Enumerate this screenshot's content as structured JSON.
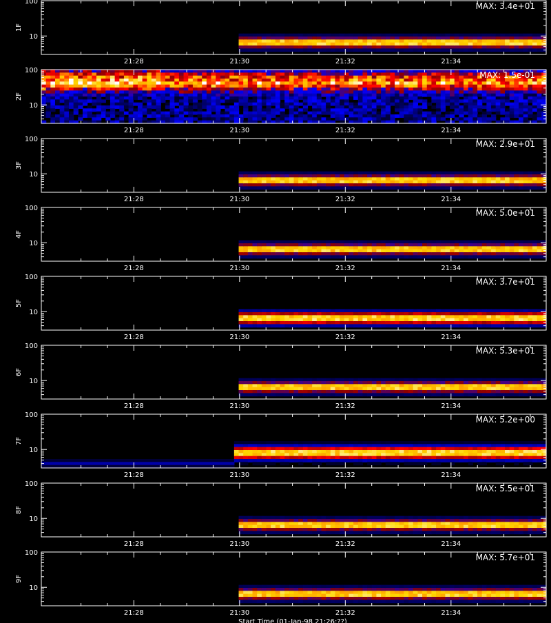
{
  "chart_data": {
    "type": "heatmap",
    "title": "",
    "x_tick_labels": [
      "21:28",
      "21:30",
      "21:32",
      "21:34"
    ],
    "x_tick_minutes": [
      28,
      30,
      32,
      34
    ],
    "x_range_minutes": [
      26.25,
      35.8
    ],
    "y_scale": "log",
    "y_range": [
      3,
      100
    ],
    "y_tick_labels": [
      "100",
      "10"
    ],
    "y_tick_values": [
      100,
      10
    ],
    "colormap": [
      "#000000",
      "#00008b",
      "#0000ff",
      "#8b0000",
      "#ff0000",
      "#ff8c00",
      "#ffd700",
      "#ffffff"
    ],
    "partial_bottom_label": "Start Time (01-Jan-98 21:26:??)",
    "panels": [
      {
        "label": "1F",
        "max_label": "MAX: 3.4e+01",
        "onset_minute": 30.0,
        "band_center": 6.5,
        "band_width": 0.14,
        "pattern": "narrow"
      },
      {
        "label": "2F",
        "max_label": "MAX: 1.5e-01",
        "onset_minute": 26.25,
        "band_center": 50,
        "band_width": 0.28,
        "pattern": "noise"
      },
      {
        "label": "3F",
        "max_label": "MAX: 2.9e+01",
        "onset_minute": 30.0,
        "band_center": 6.5,
        "band_width": 0.14,
        "pattern": "narrow"
      },
      {
        "label": "4F",
        "max_label": "MAX: 5.0e+01",
        "onset_minute": 30.0,
        "band_center": 6.5,
        "band_width": 0.14,
        "pattern": "narrow"
      },
      {
        "label": "5F",
        "max_label": "MAX: 3.7e+01",
        "onset_minute": 30.0,
        "band_center": 6.5,
        "band_width": 0.16,
        "pattern": "wide"
      },
      {
        "label": "6F",
        "max_label": "MAX: 5.3e+01",
        "onset_minute": 30.0,
        "band_center": 6.5,
        "band_width": 0.14,
        "pattern": "narrow"
      },
      {
        "label": "7F",
        "max_label": "MAX: 5.2e+00",
        "onset_minute": 29.9,
        "band_center": 8,
        "band_width": 0.17,
        "pattern": "wide-low"
      },
      {
        "label": "8F",
        "max_label": "MAX: 5.5e+01",
        "onset_minute": 30.0,
        "band_center": 6.5,
        "band_width": 0.14,
        "pattern": "narrow"
      },
      {
        "label": "9F",
        "max_label": "MAX: 5.7e+01",
        "onset_minute": 30.0,
        "band_center": 6.5,
        "band_width": 0.14,
        "pattern": "narrow"
      }
    ]
  }
}
